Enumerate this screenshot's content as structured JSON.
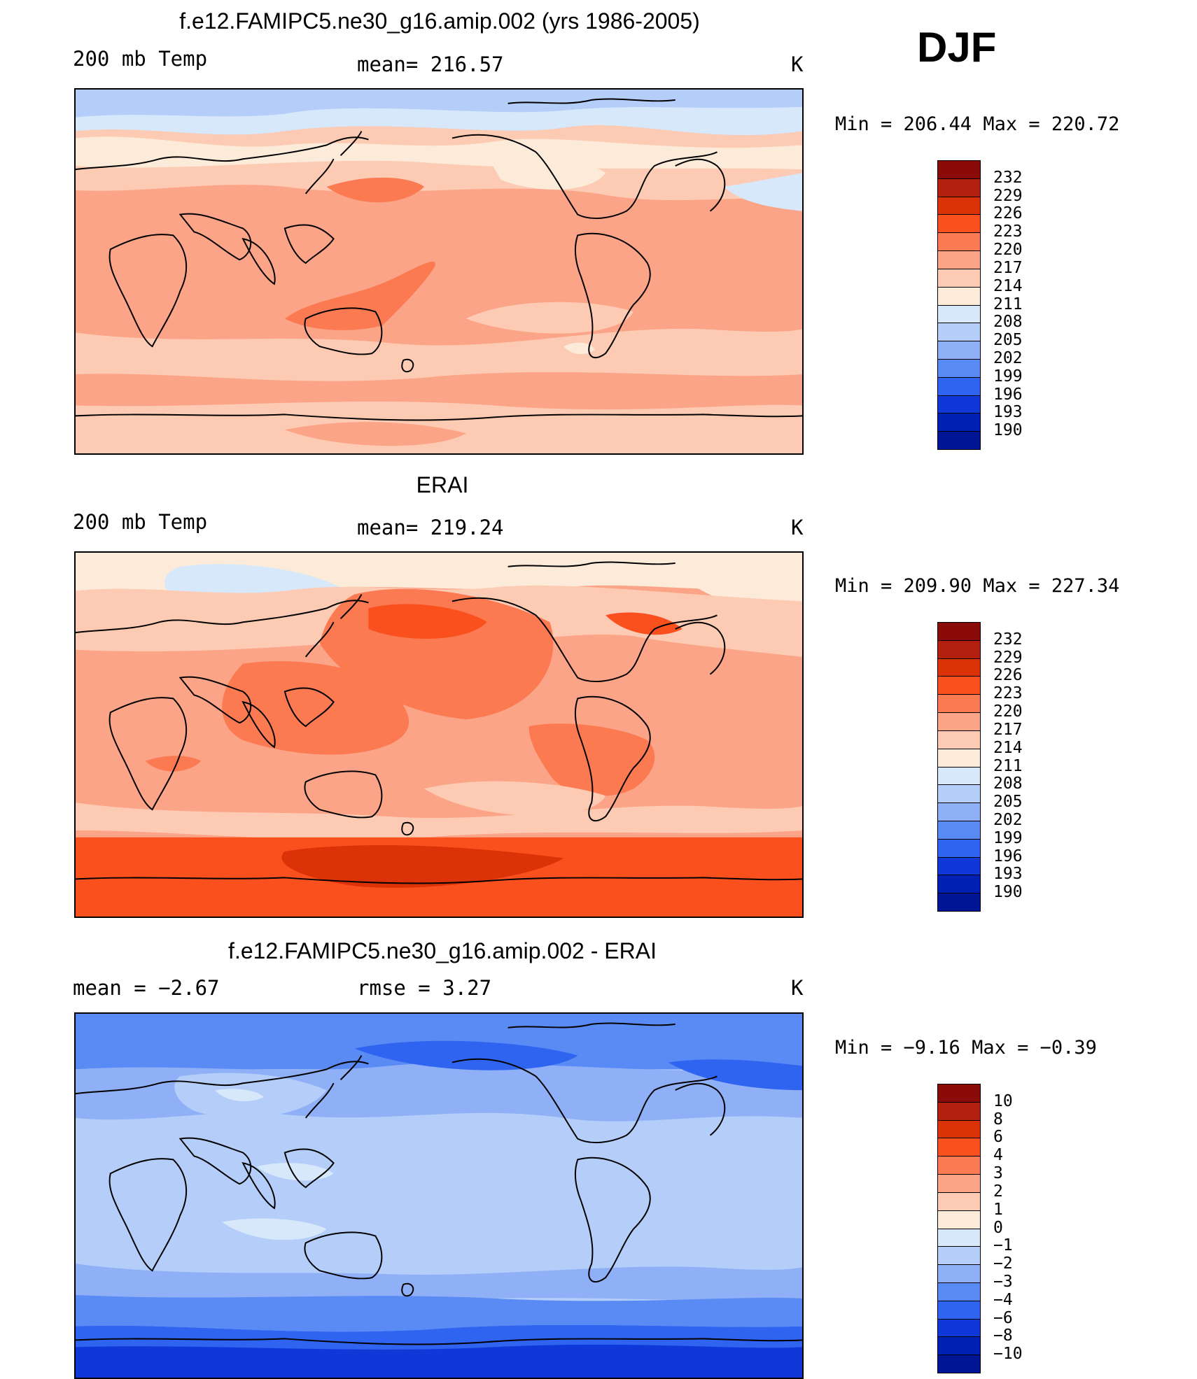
{
  "season": "DJF",
  "units_label": "K",
  "panels": [
    {
      "title": "f.e12.FAMIPC5.ne30_g16.amip.002 (yrs 1986-2005)",
      "left_label": "200 mb Temp",
      "center_label": "mean=  216.57",
      "right_label": "K",
      "minmax": "Min  =  206.44  Max  =  220.72",
      "background": "#fca487"
    },
    {
      "title": "ERAI",
      "left_label": "200 mb Temp",
      "center_label": "mean=  219.24",
      "right_label": "K",
      "minmax": "Min  =  209.90  Max  =  227.34",
      "background": "#fb7a52"
    },
    {
      "title": "f.e12.FAMIPC5.ne30_g16.amip.002 - ERAI",
      "left_label": "mean  =    −2.67",
      "center_label": "rmse  =     3.27",
      "right_label": "K",
      "minmax": "Min  =   −9.16  Max  =   −0.39",
      "background": "#b4cdf9"
    }
  ],
  "colorbar_abs": {
    "labels": [
      "232",
      "229",
      "226",
      "223",
      "220",
      "217",
      "214",
      "211",
      "208",
      "205",
      "202",
      "199",
      "196",
      "193",
      "190"
    ],
    "colors": [
      "#8b0a0a",
      "#b3200f",
      "#dc3208",
      "#f9501e",
      "#fb7a52",
      "#fca487",
      "#fdcbb4",
      "#fdebd9",
      "#d7e8fb",
      "#b4cdf9",
      "#8fb0f7",
      "#5a8af4",
      "#2e64f0",
      "#1038d8",
      "#0020b4",
      "#001496"
    ]
  },
  "colorbar_diff": {
    "labels": [
      "10",
      "8",
      "6",
      "4",
      "3",
      "2",
      "1",
      "0",
      "−1",
      "−2",
      "−3",
      "−4",
      "−6",
      "−8",
      "−10"
    ],
    "colors": [
      "#8b0a0a",
      "#b3200f",
      "#dc3208",
      "#f9501e",
      "#fb7a52",
      "#fca487",
      "#fdcbb4",
      "#fdebd9",
      "#d7e8fb",
      "#b4cdf9",
      "#8fb0f7",
      "#5a8af4",
      "#2e64f0",
      "#1038d8",
      "#0020b4",
      "#001496"
    ]
  }
}
